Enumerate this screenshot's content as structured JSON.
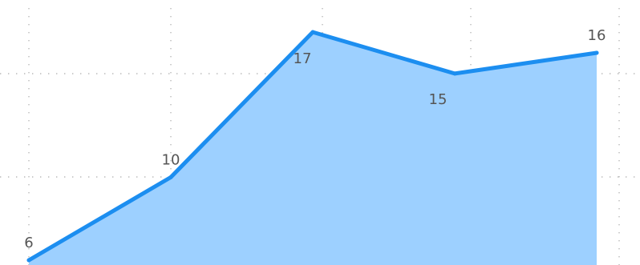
{
  "chart_data": {
    "type": "area",
    "categories": [
      "",
      "",
      "",
      "",
      ""
    ],
    "series": [
      {
        "values": [
          6,
          10,
          17,
          15,
          16
        ],
        "color": "#1c8ef0",
        "fill": "#9dd0ff"
      }
    ],
    "data_labels": [
      "6",
      "10",
      "17",
      "15",
      "16"
    ],
    "ylim": [
      6,
      18
    ],
    "grid": true,
    "legend": "none",
    "colors": {
      "line": "#1c8ef0",
      "area": "#9dd0ff",
      "grid": "#b8b8b8",
      "label": "#555555"
    }
  }
}
